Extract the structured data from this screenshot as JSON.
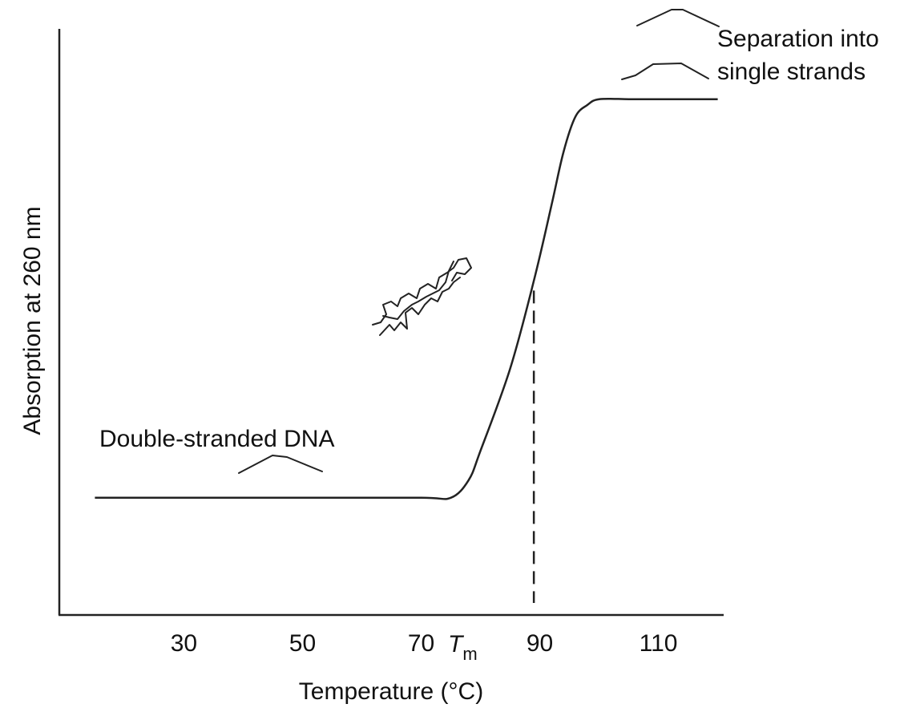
{
  "chart_data": {
    "type": "line",
    "title": "",
    "xlabel": "Temperature (°C)",
    "ylabel": "Absorption at 260 nm",
    "xlim": [
      9,
      121
    ],
    "ylim": [
      0,
      1
    ],
    "x_ticks": [
      30,
      50,
      70,
      90,
      110
    ],
    "tm_label": {
      "italic": "T",
      "sub": "m"
    },
    "tm_value": 89,
    "series": [
      {
        "x": [
          15,
          30,
          50,
          70,
          75,
          78,
          80,
          85,
          89,
          92,
          94,
          96,
          98,
          100,
          105,
          110,
          120
        ],
        "y": [
          0.2,
          0.2,
          0.2,
          0.2,
          0.2,
          0.23,
          0.28,
          0.42,
          0.57,
          0.7,
          0.79,
          0.85,
          0.87,
          0.88,
          0.88,
          0.88,
          0.88
        ]
      }
    ],
    "annotations": {
      "low": "Double-stranded DNA",
      "high_line1": "Separation into",
      "high_line2": "single strands"
    },
    "grid": false,
    "legend": "none"
  }
}
